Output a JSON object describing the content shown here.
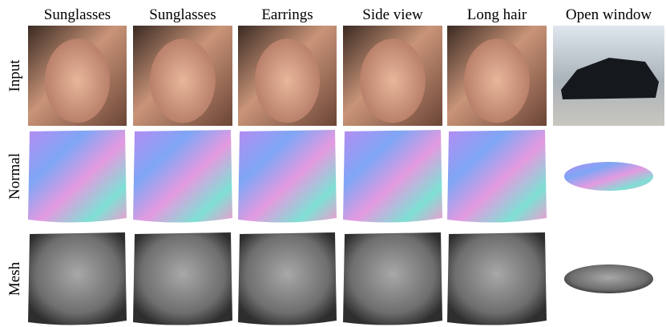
{
  "columns": [
    "Sunglasses",
    "Sunglasses",
    "Earrings",
    "Side view",
    "Long hair",
    "Open window"
  ],
  "rows": [
    "Input",
    "Normal",
    "Mesh"
  ]
}
